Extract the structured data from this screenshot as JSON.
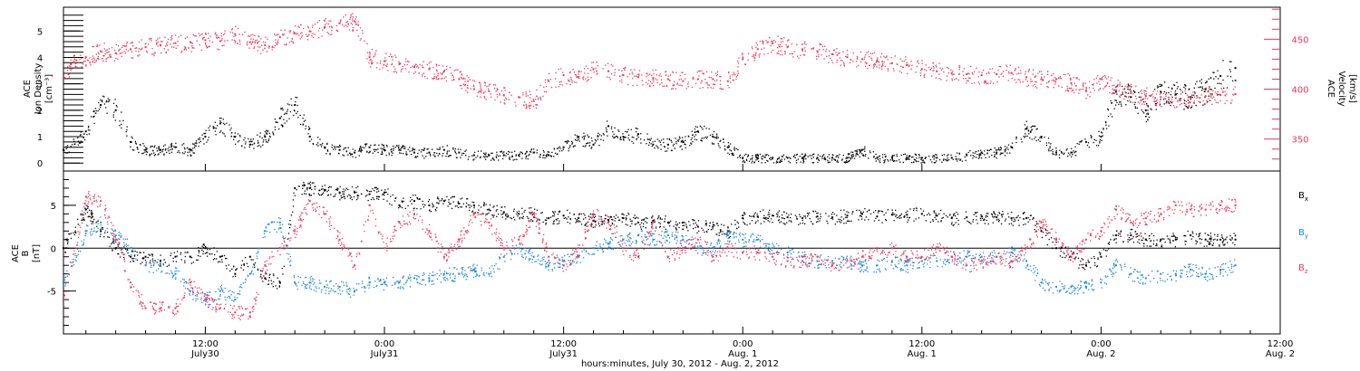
{
  "xaxis": {
    "title": "hours:minutes, July 30, 2012 - Aug.  2, 2012",
    "ticks": [
      {
        "hours": 12,
        "time": "12:00",
        "date": "July30"
      },
      {
        "hours": 24,
        "time": "0:00",
        "date": "July31"
      },
      {
        "hours": 36,
        "time": "12:00",
        "date": "July31"
      },
      {
        "hours": 48,
        "time": "0:00",
        "date": "Aug. 1"
      },
      {
        "hours": 60,
        "time": "12:00",
        "date": "Aug. 1"
      },
      {
        "hours": 72,
        "time": "0:00",
        "date": "Aug. 2"
      },
      {
        "hours": 84,
        "time": "12:00",
        "date": "Aug. 2"
      }
    ],
    "range_hours": [
      2.5,
      84
    ]
  },
  "colors": {
    "black": "#000000",
    "pink": "#e8385e",
    "blue": "#1f87d6"
  },
  "chart_data": [
    {
      "type": "scatter",
      "panel": "top",
      "left_axis": {
        "label_lines": [
          "ACE",
          "Ion Density"
        ],
        "unit": "[cm⁻³]",
        "ylim": [
          -0.3,
          5.9
        ],
        "ticks": [
          0,
          1,
          2,
          3,
          4,
          5
        ],
        "color": "#000000"
      },
      "right_axis": {
        "label_lines": [
          "ACE",
          "Velocity"
        ],
        "unit": "[km/s]",
        "ylim": [
          318,
          482
        ],
        "ticks": [
          350,
          400,
          450
        ],
        "color": "#e8385e"
      },
      "series": [
        {
          "axis": "left",
          "color": "#000000",
          "x_hours": [
            2.5,
            4,
            5,
            6,
            7,
            8,
            9,
            10,
            11,
            12,
            13,
            14,
            15,
            16,
            17,
            18,
            19,
            20,
            21,
            22,
            23,
            24,
            25,
            26,
            27,
            28,
            29,
            30,
            31,
            32,
            33,
            34,
            35,
            36,
            37,
            38,
            39,
            40,
            41,
            42,
            43,
            44,
            45,
            46,
            47,
            48,
            49,
            50,
            51,
            52,
            53,
            54,
            55,
            56,
            57,
            58,
            59,
            60,
            61,
            62,
            63,
            64,
            65,
            66,
            67,
            68,
            69,
            70,
            71,
            72,
            73,
            74,
            75,
            76,
            77,
            78,
            79,
            80,
            81
          ],
          "values": [
            0.5,
            1.2,
            2.2,
            2.0,
            0.8,
            0.5,
            0.5,
            0.6,
            0.5,
            1.0,
            1.5,
            1.0,
            0.7,
            1.0,
            1.7,
            2.2,
            1.0,
            0.6,
            0.5,
            0.4,
            0.6,
            0.5,
            0.5,
            0.4,
            0.4,
            0.5,
            0.4,
            0.3,
            0.3,
            0.3,
            0.3,
            0.4,
            0.3,
            0.6,
            1.0,
            0.7,
            1.4,
            1.0,
            1.1,
            0.7,
            0.7,
            0.8,
            1.2,
            1.0,
            0.6,
            0.2,
            0.2,
            0.2,
            0.2,
            0.2,
            0.2,
            0.2,
            0.2,
            0.5,
            0.2,
            0.2,
            0.2,
            0.2,
            0.2,
            0.2,
            0.3,
            0.4,
            0.4,
            0.6,
            1.3,
            1.0,
            0.4,
            0.4,
            0.8,
            1.0,
            2.7,
            2.5,
            2.0,
            2.7,
            2.6,
            2.5,
            2.8,
            3.3,
            3.6
          ]
        },
        {
          "axis": "right",
          "color": "#e8385e",
          "x_hours": [
            2.5,
            3,
            4,
            5,
            6,
            7,
            8,
            9,
            10,
            11,
            12,
            13,
            14,
            15,
            16,
            17,
            18,
            19,
            20,
            21,
            22,
            23,
            24,
            25,
            26,
            27,
            28,
            29,
            30,
            31,
            32,
            33,
            34,
            35,
            36,
            37,
            38,
            39,
            40,
            41,
            42,
            43,
            44,
            45,
            46,
            47,
            48,
            49,
            50,
            51,
            52,
            53,
            54,
            55,
            56,
            57,
            58,
            59,
            60,
            61,
            62,
            63,
            64,
            65,
            66,
            67,
            68,
            69,
            70,
            71,
            72,
            73,
            74,
            75,
            76,
            77,
            78,
            79,
            80,
            81
          ],
          "values": [
            410,
            425,
            432,
            438,
            436,
            440,
            442,
            444,
            446,
            447,
            449,
            448,
            455,
            447,
            444,
            452,
            456,
            458,
            462,
            466,
            468,
            432,
            428,
            425,
            422,
            420,
            418,
            410,
            400,
            398,
            394,
            392,
            388,
            408,
            414,
            412,
            420,
            418,
            414,
            412,
            411,
            410,
            408,
            410,
            410,
            408,
            430,
            440,
            446,
            442,
            440,
            438,
            435,
            432,
            430,
            428,
            426,
            424,
            420,
            418,
            416,
            415,
            414,
            415,
            416,
            412,
            410,
            410,
            406,
            398,
            410,
            402,
            396,
            393,
            392,
            391,
            390,
            393,
            394,
            395
          ]
        }
      ]
    },
    {
      "type": "scatter",
      "panel": "bottom",
      "left_axis": {
        "label_lines": [
          "ACE",
          "B"
        ],
        "unit": "[nT]",
        "ylim": [
          -10,
          9
        ],
        "ticks": [
          -5,
          0,
          5
        ],
        "color": "#000000"
      },
      "zero_line": 0,
      "series": [
        {
          "name": "Bx",
          "label_base": "B",
          "label_sub": "x",
          "color": "#000000",
          "x_hours": [
            2.5,
            4,
            5,
            6,
            7,
            8,
            9,
            10,
            11,
            12,
            13,
            14,
            15,
            16,
            17,
            18,
            19,
            20,
            21,
            22,
            23,
            24,
            25,
            26,
            27,
            28,
            29,
            30,
            31,
            32,
            33,
            34,
            35,
            36,
            37,
            38,
            39,
            40,
            41,
            42,
            43,
            44,
            45,
            46,
            47,
            48,
            49,
            50,
            51,
            52,
            53,
            54,
            55,
            56,
            57,
            58,
            59,
            60,
            61,
            62,
            63,
            64,
            65,
            66,
            67,
            68,
            69,
            70,
            71,
            72,
            73,
            74,
            75,
            76,
            77,
            78,
            79,
            80,
            81
          ],
          "values": [
            0.0,
            4.5,
            2.0,
            0.0,
            -1.0,
            -1.0,
            -1.5,
            -1.0,
            -1.0,
            0.0,
            -1.0,
            -3.0,
            -1.0,
            -3.5,
            -4.0,
            7.0,
            7.0,
            6.8,
            6.5,
            6.5,
            6.3,
            6.5,
            5.0,
            5.5,
            5.0,
            5.5,
            5.2,
            5.0,
            4.5,
            4.2,
            4.0,
            4.0,
            3.5,
            3.8,
            3.5,
            3.2,
            3.3,
            3.5,
            3.0,
            3.2,
            3.0,
            3.0,
            2.5,
            2.5,
            2.0,
            3.5,
            3.7,
            3.8,
            3.6,
            3.5,
            3.7,
            3.6,
            3.8,
            4.0,
            3.7,
            3.9,
            3.9,
            4.0,
            3.8,
            3.5,
            3.6,
            3.7,
            3.6,
            3.5,
            3.5,
            2.0,
            0.0,
            -1.0,
            -2.0,
            -1.0,
            1.5,
            1.5,
            1.0,
            1.0,
            1.0,
            1.5,
            1.0,
            1.0,
            1.0
          ]
        },
        {
          "name": "By",
          "label_base": "B",
          "label_sub": "y",
          "color": "#1f87d6",
          "x_hours": [
            2.5,
            4,
            5,
            6,
            7,
            8,
            9,
            10,
            11,
            12,
            13,
            14,
            15,
            16,
            17,
            18,
            19,
            20,
            21,
            22,
            23,
            24,
            25,
            26,
            27,
            28,
            29,
            30,
            31,
            32,
            33,
            34,
            35,
            36,
            37,
            38,
            39,
            40,
            41,
            42,
            43,
            44,
            45,
            46,
            47,
            48,
            49,
            50,
            51,
            52,
            53,
            54,
            55,
            56,
            57,
            58,
            59,
            60,
            61,
            62,
            63,
            64,
            65,
            66,
            67,
            68,
            69,
            70,
            71,
            72,
            73,
            74,
            75,
            76,
            77,
            78,
            79,
            80,
            81
          ],
          "values": [
            -4.0,
            2.0,
            3.0,
            1.5,
            0.0,
            -2.0,
            -2.0,
            -3.0,
            -5.0,
            -6.0,
            -5.0,
            -6.0,
            -3.0,
            2.0,
            3.0,
            -4.0,
            -4.0,
            -4.5,
            -4.5,
            -5.0,
            -4.0,
            -4.0,
            -4.0,
            -3.5,
            -3.5,
            -3.0,
            -3.0,
            -2.5,
            -3.0,
            -1.0,
            0.0,
            -1.0,
            -2.0,
            -1.5,
            -1.0,
            0.0,
            0.5,
            1.0,
            1.5,
            1.0,
            1.5,
            1.0,
            0.0,
            0.0,
            1.5,
            1.0,
            1.0,
            0.0,
            -0.5,
            -1.0,
            -1.5,
            -1.5,
            -1.5,
            -2.0,
            -2.0,
            -1.5,
            -2.0,
            -1.5,
            -1.5,
            -1.0,
            -1.0,
            -1.0,
            -1.0,
            -0.5,
            -1.5,
            -4.0,
            -4.5,
            -4.5,
            -4.5,
            -4.0,
            -2.0,
            -3.0,
            -3.5,
            -3.0,
            -3.0,
            -2.5,
            -3.0,
            -2.5,
            -2.0
          ]
        },
        {
          "name": "Bz",
          "label_base": "B",
          "label_sub": "z",
          "color": "#e8385e",
          "x_hours": [
            2.5,
            4,
            5,
            6,
            7,
            8,
            9,
            10,
            11,
            12,
            13,
            14,
            15,
            16,
            17,
            18,
            19,
            20,
            21,
            22,
            23,
            24,
            25,
            26,
            27,
            28,
            29,
            30,
            31,
            32,
            33,
            34,
            35,
            36,
            37,
            38,
            39,
            40,
            41,
            42,
            43,
            44,
            45,
            46,
            47,
            48,
            49,
            50,
            51,
            52,
            53,
            54,
            55,
            56,
            57,
            58,
            59,
            60,
            61,
            62,
            63,
            64,
            65,
            66,
            67,
            68,
            69,
            70,
            71,
            72,
            73,
            74,
            75,
            76,
            77,
            78,
            79,
            80,
            81
          ],
          "values": [
            -6.0,
            6.0,
            5.5,
            1.0,
            -4.0,
            -7.0,
            -7.0,
            -7.0,
            -4.0,
            -6.0,
            -7.0,
            -7.5,
            -7.5,
            -2.0,
            0.0,
            2.0,
            5.5,
            4.0,
            1.0,
            -2.0,
            5.0,
            0.0,
            3.0,
            4.0,
            2.0,
            -1.0,
            1.0,
            4.0,
            3.0,
            0.0,
            1.0,
            4.0,
            -1.0,
            -2.0,
            0.0,
            4.0,
            3.0,
            0.0,
            -1.0,
            3.0,
            -1.0,
            0.0,
            1.0,
            -1.0,
            0.0,
            -0.5,
            -0.5,
            -1.0,
            -1.5,
            -1.5,
            -1.0,
            -2.0,
            -1.5,
            -1.0,
            0.0,
            0.0,
            -1.0,
            -1.0,
            0.0,
            -1.0,
            -2.0,
            -1.5,
            -1.0,
            -1.5,
            0.0,
            3.0,
            1.0,
            -1.0,
            1.0,
            2.0,
            4.5,
            3.0,
            3.5,
            4.0,
            5.0,
            4.5,
            4.5,
            5.0,
            5.0
          ]
        }
      ]
    }
  ]
}
